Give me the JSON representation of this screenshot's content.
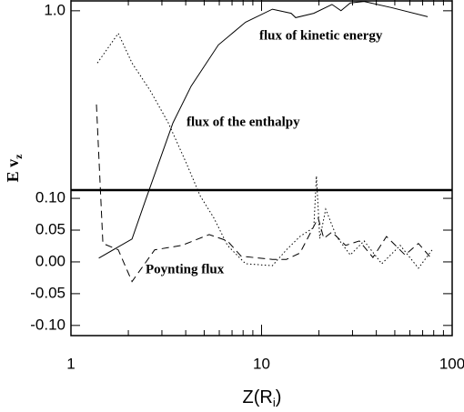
{
  "chart_data": {
    "type": "line",
    "xlabel": {
      "main": "Z(R",
      "subscript": "i",
      "close": ")"
    },
    "ylabel": {
      "main": "E v",
      "subscript": "z"
    },
    "xlog": true,
    "xlim": [
      1,
      100
    ],
    "xticks": [
      1,
      10,
      100
    ],
    "ylim": [
      -0.116,
      1.14
    ],
    "y_split": 0.113,
    "y_upper_log": true,
    "yticks": [
      {
        "value": -0.1,
        "label": "-0.10"
      },
      {
        "value": -0.05,
        "label": "-0.05"
      },
      {
        "value": 0,
        "label": "0.00"
      },
      {
        "value": 0.05,
        "label": "0.05"
      },
      {
        "value": 0.1,
        "label": "0.10"
      },
      {
        "value": 1,
        "label": "1.0"
      }
    ],
    "series": [
      {
        "name": "flux of kinetic energy",
        "color": "#000000",
        "style": "solid",
        "x": [
          1.4,
          2.09,
          2.46,
          3.43,
          4.27,
          5.93,
          8.24,
          11.4,
          14.3,
          15.1,
          18.8,
          23.4,
          26.1,
          29.2,
          34.5,
          47.9,
          74.4
        ],
        "values": [
          0.006,
          0.036,
          0.097,
          0.256,
          0.4,
          0.66,
          0.87,
          1.02,
          0.97,
          0.92,
          0.97,
          1.08,
          1.0,
          1.1,
          1.12,
          1.04,
          0.93
        ]
      },
      {
        "name": "flux of the enthalpy",
        "color": "#000000",
        "style": "dotted",
        "x": [
          1.376,
          1.77,
          2.09,
          2.6,
          3.24,
          4.04,
          4.76,
          5.62,
          6.62,
          8.24,
          11.4,
          13.5,
          15.9,
          18.8,
          19.4,
          20.2,
          21.7,
          24.7,
          29.2,
          34.5,
          42.7,
          53.4,
          66.5,
          78.5
        ],
        "values": [
          0.53,
          0.76,
          0.53,
          0.38,
          0.256,
          0.156,
          0.104,
          0.069,
          0.026,
          -0.003,
          -0.006,
          0.019,
          0.04,
          0.054,
          0.134,
          0.037,
          0.083,
          0.04,
          0.011,
          0.033,
          -0.003,
          0.026,
          -0.01,
          0.019
        ]
      },
      {
        "name": "Poynting flux",
        "color": "#000000",
        "style": "dashed",
        "x": [
          1.36,
          1.47,
          1.77,
          2.09,
          2.75,
          3.82,
          5.31,
          6.62,
          7.81,
          11.4,
          13.5,
          15.9,
          19.8,
          21.2,
          23.4,
          27.6,
          32.6,
          38.4,
          45.2,
          56.6,
          66.5,
          78.5
        ],
        "values": [
          0.32,
          0.029,
          0.019,
          -0.031,
          0.019,
          0.026,
          0.043,
          0.033,
          0.009,
          0.004,
          0.004,
          0.014,
          0.069,
          0.037,
          0.047,
          0.026,
          0.033,
          0.007,
          0.04,
          0.011,
          0.029,
          0.004
        ]
      }
    ]
  }
}
